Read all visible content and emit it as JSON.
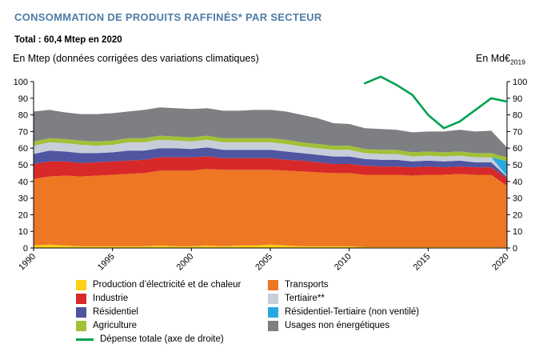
{
  "header": {
    "title": "CONSOMMATION DE PRODUITS RAFFINÉS* PAR SECTEUR",
    "subtitle": "Total : 60,4 Mtep en 2020"
  },
  "axes": {
    "left_label": "En Mtep (données corrigées des variations climatiques)",
    "right_label": "En Md€",
    "right_label_sub": "2019"
  },
  "colors": {
    "title_blue": "#4e7ca6",
    "elec": "#fdd017",
    "transports": "#ed7723",
    "industrie": "#d7282a",
    "residentiel": "#4f55a0",
    "tertiaire": "#c7ced9",
    "res_tert_nv": "#29a8e0",
    "agriculture": "#a2c037",
    "usages": "#7d7f82",
    "depense": "#00a150"
  },
  "chart_data": {
    "type": "area",
    "title": "Consommation de produits raffinés par secteur",
    "ylim": [
      0,
      100
    ],
    "y_ticks": [
      0,
      10,
      20,
      30,
      40,
      50,
      60,
      70,
      80,
      90,
      100
    ],
    "x_ticks": [
      1990,
      1995,
      2000,
      2005,
      2010,
      2015,
      2020
    ],
    "x": [
      1990,
      1991,
      1992,
      1993,
      1994,
      1995,
      1996,
      1997,
      1998,
      1999,
      2000,
      2001,
      2002,
      2003,
      2004,
      2005,
      2006,
      2007,
      2008,
      2009,
      2010,
      2011,
      2012,
      2013,
      2014,
      2015,
      2016,
      2017,
      2018,
      2019,
      2020
    ],
    "series": [
      {
        "name": "Production d’électricité et de chaleur",
        "color": "elec",
        "values": [
          1.5,
          2,
          1.5,
          1,
          1,
          1,
          1,
          1,
          1.5,
          1,
          1,
          1.5,
          1,
          1.5,
          1.5,
          2,
          1.5,
          1,
          1,
          1,
          1,
          0.5,
          0.5,
          0.5,
          0.5,
          0.5,
          0.5,
          0.5,
          0.5,
          0.5,
          0.4
        ]
      },
      {
        "name": "Transports",
        "color": "transports",
        "values": [
          40,
          41,
          42,
          42,
          42.5,
          43,
          43.5,
          44,
          45,
          45.5,
          45.5,
          46,
          46,
          45.5,
          45.5,
          45,
          45,
          45,
          44.5,
          44,
          44,
          43.5,
          43.5,
          43.5,
          43,
          43.5,
          43.5,
          44,
          43.5,
          43.5,
          37
        ]
      },
      {
        "name": "Industrie",
        "color": "industrie",
        "values": [
          9,
          9,
          8.5,
          8,
          8,
          8,
          8,
          8,
          8,
          8,
          8,
          7.5,
          7,
          7,
          7,
          7,
          6.5,
          6.5,
          6,
          5.5,
          5.5,
          5.5,
          5,
          5,
          5,
          5,
          4.5,
          4.5,
          4.5,
          4.5,
          4.5
        ]
      },
      {
        "name": "Résidentiel",
        "color": "residentiel",
        "values": [
          6,
          6.5,
          6,
          6,
          5.5,
          5.5,
          6,
          5.5,
          5.5,
          5.5,
          5,
          5.5,
          5,
          5,
          5,
          5,
          5,
          4.5,
          4.5,
          4.5,
          4.5,
          4,
          4,
          4,
          3.5,
          3.5,
          3.5,
          3.5,
          3,
          3,
          0.8
        ]
      },
      {
        "name": "Tertiaire",
        "color": "tertiaire",
        "values": [
          5,
          5,
          5,
          5,
          4.5,
          4.5,
          5,
          5,
          5,
          4.5,
          4.5,
          4.5,
          4.5,
          4.5,
          4.5,
          4.5,
          4.5,
          4,
          4,
          4,
          4,
          3.5,
          3.5,
          3.5,
          3,
          3,
          3,
          3,
          3,
          3,
          0.5
        ]
      },
      {
        "name": "Résidentiel-Tertiaire (non ventilé)",
        "color": "res_tert_nv",
        "values": [
          0,
          0,
          0,
          0,
          0,
          0,
          0,
          0,
          0,
          0,
          0,
          0,
          0,
          0,
          0,
          0,
          0,
          0,
          0,
          0,
          0,
          0,
          0,
          0,
          0,
          0,
          0,
          0,
          0,
          0,
          9
        ]
      },
      {
        "name": "Agriculture",
        "color": "agriculture",
        "values": [
          2.5,
          2.5,
          2.5,
          2.5,
          2.5,
          2.5,
          2.5,
          2.5,
          2.5,
          2.5,
          2.5,
          2.5,
          2.5,
          2.5,
          2.5,
          2.5,
          2.5,
          2.5,
          2.5,
          2.5,
          2.5,
          2.5,
          2.5,
          2.5,
          2.5,
          2.5,
          2.5,
          2.5,
          2.5,
          2.5,
          2.2
        ]
      },
      {
        "name": "Usages non énergétiques",
        "color": "usages",
        "values": [
          18,
          17,
          16,
          16,
          16.5,
          16.5,
          16,
          17,
          17,
          17,
          17,
          16.5,
          16.5,
          16.5,
          17,
          17,
          17,
          16.5,
          15.5,
          13.5,
          13,
          12.5,
          12.5,
          12,
          12,
          12,
          12.5,
          13,
          13,
          13.5,
          6
        ]
      }
    ],
    "line_series": {
      "name": "Dépense totale (axe de droite)",
      "color": "depense",
      "axis": "right",
      "x": [
        2011,
        2012,
        2013,
        2014,
        2015,
        2016,
        2017,
        2018,
        2019,
        2020
      ],
      "values": [
        99,
        103,
        98,
        92,
        80,
        72,
        76,
        83,
        90,
        88
      ]
    }
  },
  "legend": {
    "left": [
      {
        "label": "Production d’électricité et de chaleur",
        "color": "elec"
      },
      {
        "label": "Industrie",
        "color": "industrie"
      },
      {
        "label": "Résidentiel",
        "color": "residentiel"
      },
      {
        "label": "Agriculture",
        "color": "agriculture"
      },
      {
        "label": "Dépense totale (axe de droite)",
        "color": "depense"
      }
    ],
    "right": [
      {
        "label": "Transports",
        "color": "transports"
      },
      {
        "label": "Tertiaire**",
        "color": "tertiaire"
      },
      {
        "label": "Résidentiel-Tertiaire (non ventilé)",
        "color": "res_tert_nv"
      },
      {
        "label": "Usages non énergétiques",
        "color": "usages"
      }
    ]
  }
}
